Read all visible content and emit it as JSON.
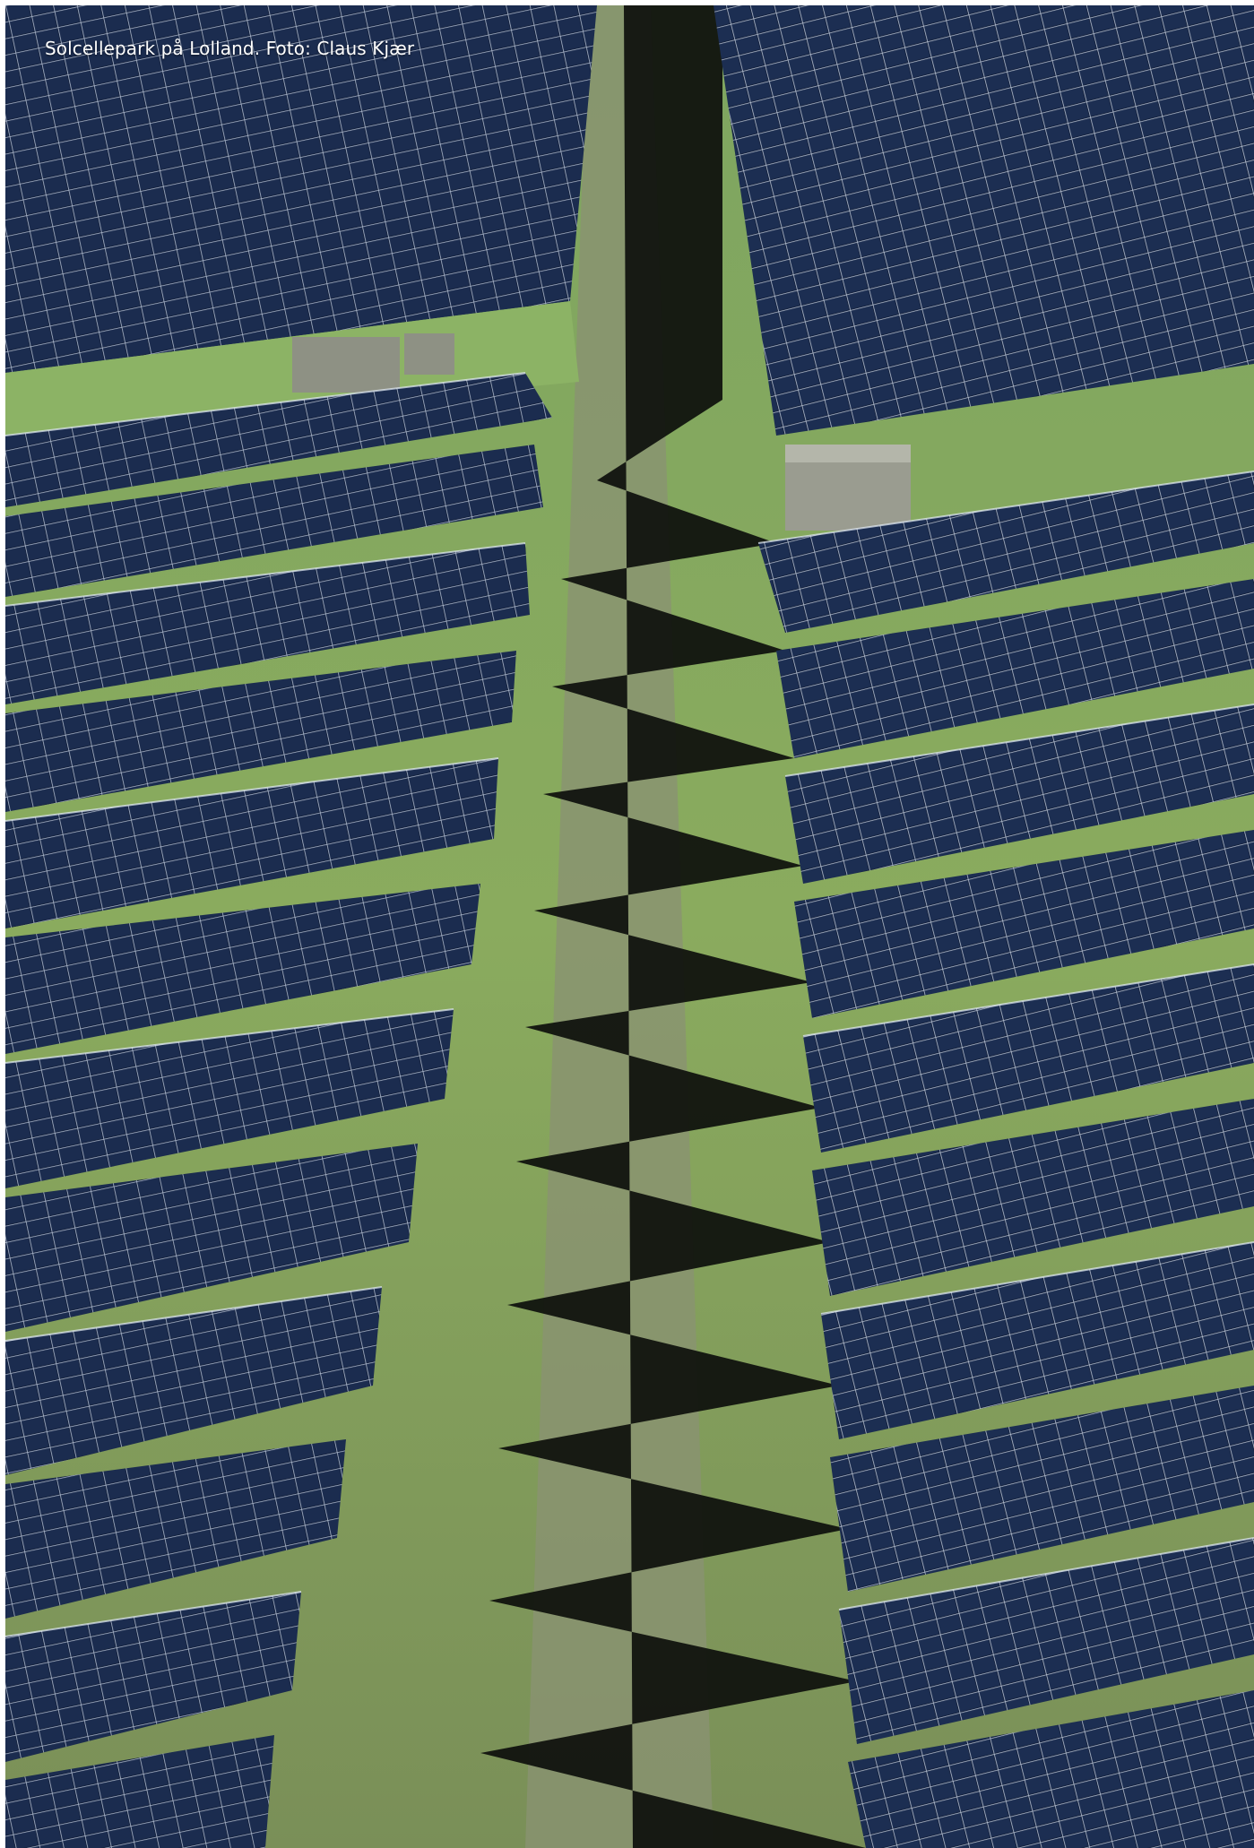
{
  "photo": {
    "caption": "Solcellepark på Lolland. Foto: Claus Kjær",
    "subject": "solar-park-aerial-photo"
  },
  "colors": {
    "panel": "#14213d",
    "panel_grid": "#c9d6ea",
    "grass": "#7fa35a",
    "grass_dark": "#4f6f3a",
    "shadow": "#0d0f0c",
    "track": "#8a9070",
    "hut": "#9a9c90"
  }
}
